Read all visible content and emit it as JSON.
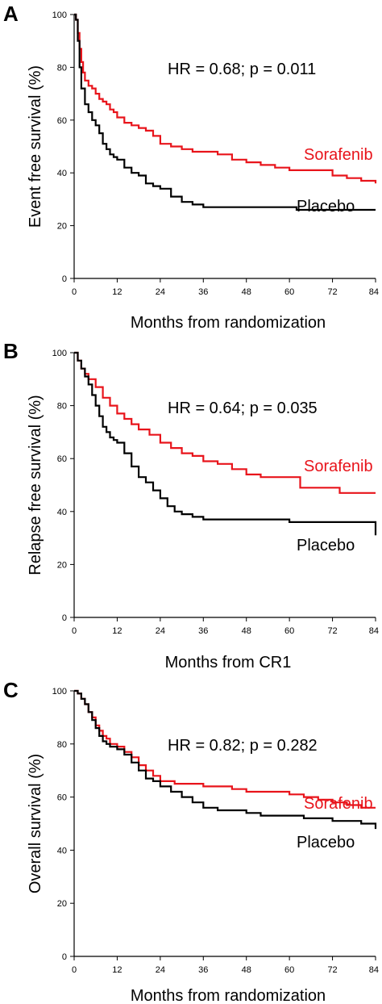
{
  "colors": {
    "sorafenib": "#e8141b",
    "placebo": "#000000",
    "axis": "#000000"
  },
  "chart_data": [
    {
      "type": "line",
      "panel": "A",
      "xlabel": "Months from randomization",
      "ylabel": "Event free survival (%)",
      "xlim": [
        0,
        84
      ],
      "ylim": [
        0,
        100
      ],
      "xticks": [
        "0",
        "12",
        "24",
        "36",
        "48",
        "60",
        "72",
        "84"
      ],
      "yticks": [
        "0",
        "20",
        "40",
        "60",
        "80",
        "100"
      ],
      "annotation": "HR = 0.68; p = 0.011",
      "grid": false,
      "series": [
        {
          "name": "Sorafenib",
          "color": "#e8141b",
          "x": [
            0,
            0.5,
            1,
            1.5,
            2,
            2.5,
            3,
            4,
            5,
            6,
            7,
            8,
            9,
            10,
            11,
            12,
            14,
            16,
            18,
            20,
            22,
            24,
            27,
            30,
            33,
            36,
            40,
            44,
            48,
            52,
            56,
            60,
            64,
            68,
            72,
            76,
            80,
            84
          ],
          "y": [
            100,
            98,
            93,
            87,
            82,
            78,
            75,
            73,
            72,
            70,
            68,
            67,
            66,
            64,
            63,
            61,
            59,
            58,
            57,
            56,
            54,
            51,
            50,
            49,
            48,
            48,
            47,
            45,
            44,
            43,
            42,
            41,
            41,
            41,
            39,
            38,
            37,
            36
          ]
        },
        {
          "name": "Placebo",
          "color": "#000000",
          "x": [
            0,
            0.5,
            1,
            1.5,
            2,
            3,
            4,
            5,
            6,
            7,
            8,
            9,
            10,
            11,
            12,
            14,
            16,
            18,
            20,
            22,
            24,
            27,
            30,
            33,
            36,
            48,
            60,
            62,
            72,
            84
          ],
          "y": [
            100,
            98,
            90,
            80,
            72,
            66,
            63,
            60,
            58,
            55,
            51,
            49,
            47,
            46,
            45,
            42,
            40,
            39,
            36,
            35,
            34,
            31,
            29,
            28,
            27,
            27,
            27,
            26,
            26,
            26
          ]
        }
      ]
    },
    {
      "type": "line",
      "panel": "B",
      "xlabel": "Months from CR1",
      "ylabel": "Relapse free survival (%)",
      "xlim": [
        0,
        84
      ],
      "ylim": [
        0,
        100
      ],
      "xticks": [
        "0",
        "12",
        "24",
        "36",
        "48",
        "60",
        "72",
        "84"
      ],
      "yticks": [
        "0",
        "20",
        "40",
        "60",
        "80",
        "100"
      ],
      "annotation": "HR = 0.64; p = 0.035",
      "grid": false,
      "series": [
        {
          "name": "Sorafenib",
          "color": "#e8141b",
          "x": [
            0,
            1,
            2,
            3,
            4,
            6,
            8,
            10,
            12,
            14,
            16,
            18,
            21,
            24,
            27,
            30,
            33,
            36,
            40,
            44,
            48,
            52,
            56,
            60,
            63,
            66,
            70,
            74,
            78,
            84
          ],
          "y": [
            100,
            97,
            94,
            92,
            90,
            87,
            83,
            80,
            77,
            75,
            73,
            71,
            69,
            66,
            64,
            62,
            61,
            59,
            58,
            56,
            54,
            53,
            53,
            53,
            49,
            49,
            49,
            47,
            47,
            47
          ]
        },
        {
          "name": "Placebo",
          "color": "#000000",
          "x": [
            0,
            1,
            2,
            3,
            4,
            5,
            6,
            7,
            8,
            9,
            10,
            11,
            12,
            14,
            16,
            18,
            20,
            22,
            24,
            26,
            28,
            30,
            33,
            36,
            48,
            60,
            72,
            84,
            84
          ],
          "y": [
            100,
            97,
            94,
            91,
            88,
            84,
            80,
            76,
            72,
            70,
            68,
            67,
            66,
            62,
            57,
            53,
            51,
            48,
            45,
            42,
            40,
            39,
            38,
            37,
            37,
            36,
            36,
            36,
            31
          ]
        }
      ]
    },
    {
      "type": "line",
      "panel": "C",
      "xlabel": "Months from randomization",
      "ylabel": "Overall survival (%)",
      "xlim": [
        0,
        84
      ],
      "ylim": [
        0,
        100
      ],
      "xticks": [
        "0",
        "12",
        "24",
        "36",
        "48",
        "60",
        "72",
        "84"
      ],
      "yticks": [
        "0",
        "20",
        "40",
        "60",
        "80",
        "100"
      ],
      "annotation": "HR = 0.82; p = 0.282",
      "grid": false,
      "series": [
        {
          "name": "Sorafenib",
          "color": "#e8141b",
          "x": [
            0,
            1,
            2,
            3,
            4,
            5,
            6,
            7,
            8,
            9,
            10,
            12,
            14,
            16,
            18,
            20,
            22,
            24,
            28,
            32,
            36,
            40,
            44,
            48,
            52,
            56,
            60,
            64,
            68,
            72,
            76,
            80,
            84
          ],
          "y": [
            100,
            99,
            97,
            95,
            92,
            90,
            87,
            85,
            83,
            82,
            80,
            79,
            77,
            75,
            72,
            70,
            68,
            66,
            65,
            65,
            64,
            64,
            63,
            62,
            62,
            62,
            61,
            60,
            59,
            58,
            57,
            56,
            56
          ]
        },
        {
          "name": "Placebo",
          "color": "#000000",
          "x": [
            0,
            1,
            2,
            3,
            4,
            5,
            6,
            7,
            8,
            9,
            10,
            12,
            14,
            16,
            18,
            20,
            22,
            24,
            27,
            30,
            33,
            36,
            40,
            44,
            48,
            52,
            56,
            60,
            64,
            68,
            72,
            76,
            80,
            83,
            84
          ],
          "y": [
            100,
            99,
            97,
            95,
            92,
            89,
            86,
            83,
            81,
            80,
            79,
            78,
            76,
            73,
            70,
            67,
            66,
            64,
            62,
            60,
            58,
            56,
            55,
            55,
            54,
            53,
            53,
            53,
            52,
            52,
            51,
            51,
            50,
            50,
            48
          ]
        }
      ]
    }
  ]
}
